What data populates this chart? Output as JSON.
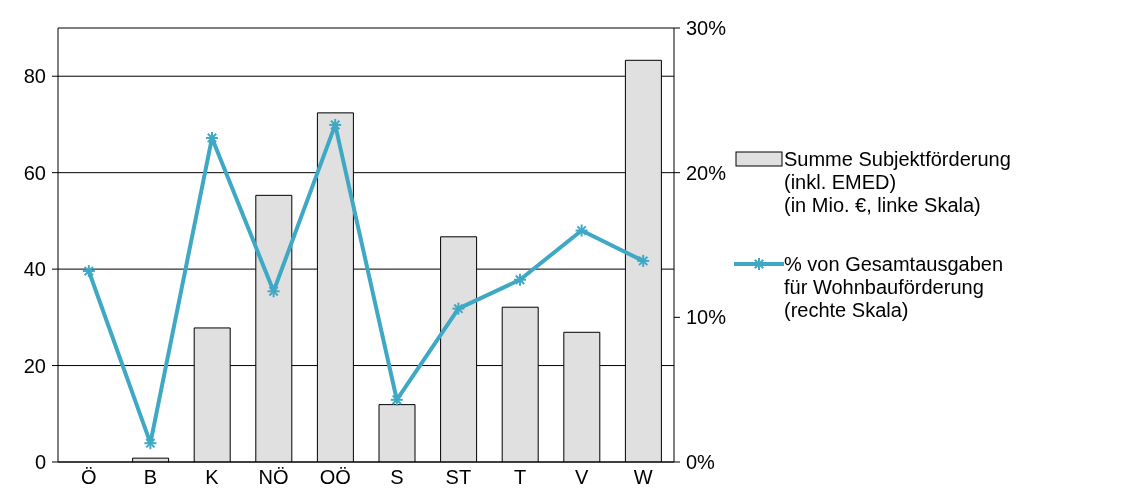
{
  "chart_data": {
    "type": "bar",
    "categories": [
      "Ö",
      "B",
      "K",
      "NÖ",
      "OÖ",
      "S",
      "ST",
      "T",
      "V",
      "W"
    ],
    "series": [
      {
        "name": "Summe Subjektförderung\n(inkl. EMED)\n(in Mio. €, linke Skala)",
        "color": "#e0e0e0",
        "values": [
          0,
          0.8,
          27.8,
          55.3,
          72.4,
          11.9,
          46.7,
          32.1,
          26.9,
          83.3
        ]
      },
      {
        "type": "line",
        "axis": "y2",
        "name": "% von Gesamtausgaben\nfür Wohnbauförderung\n(rechte Skala)",
        "color": "#3fa9c5",
        "marker": "cross",
        "values": [
          13.2,
          1.3,
          22.4,
          11.8,
          23.3,
          4.3,
          10.6,
          12.6,
          16.0,
          13.9
        ]
      }
    ],
    "ylim": [
      0,
      90
    ],
    "yticks": [
      0,
      20,
      40,
      60,
      80
    ],
    "y2lim": [
      0,
      30
    ],
    "y2ticks": [
      {
        "value": 0,
        "label": "0%"
      },
      {
        "value": 10,
        "label": "10%"
      },
      {
        "value": 20,
        "label": "20%"
      },
      {
        "value": 30,
        "label": "30%"
      }
    ],
    "grid": "y",
    "legend": "right"
  }
}
